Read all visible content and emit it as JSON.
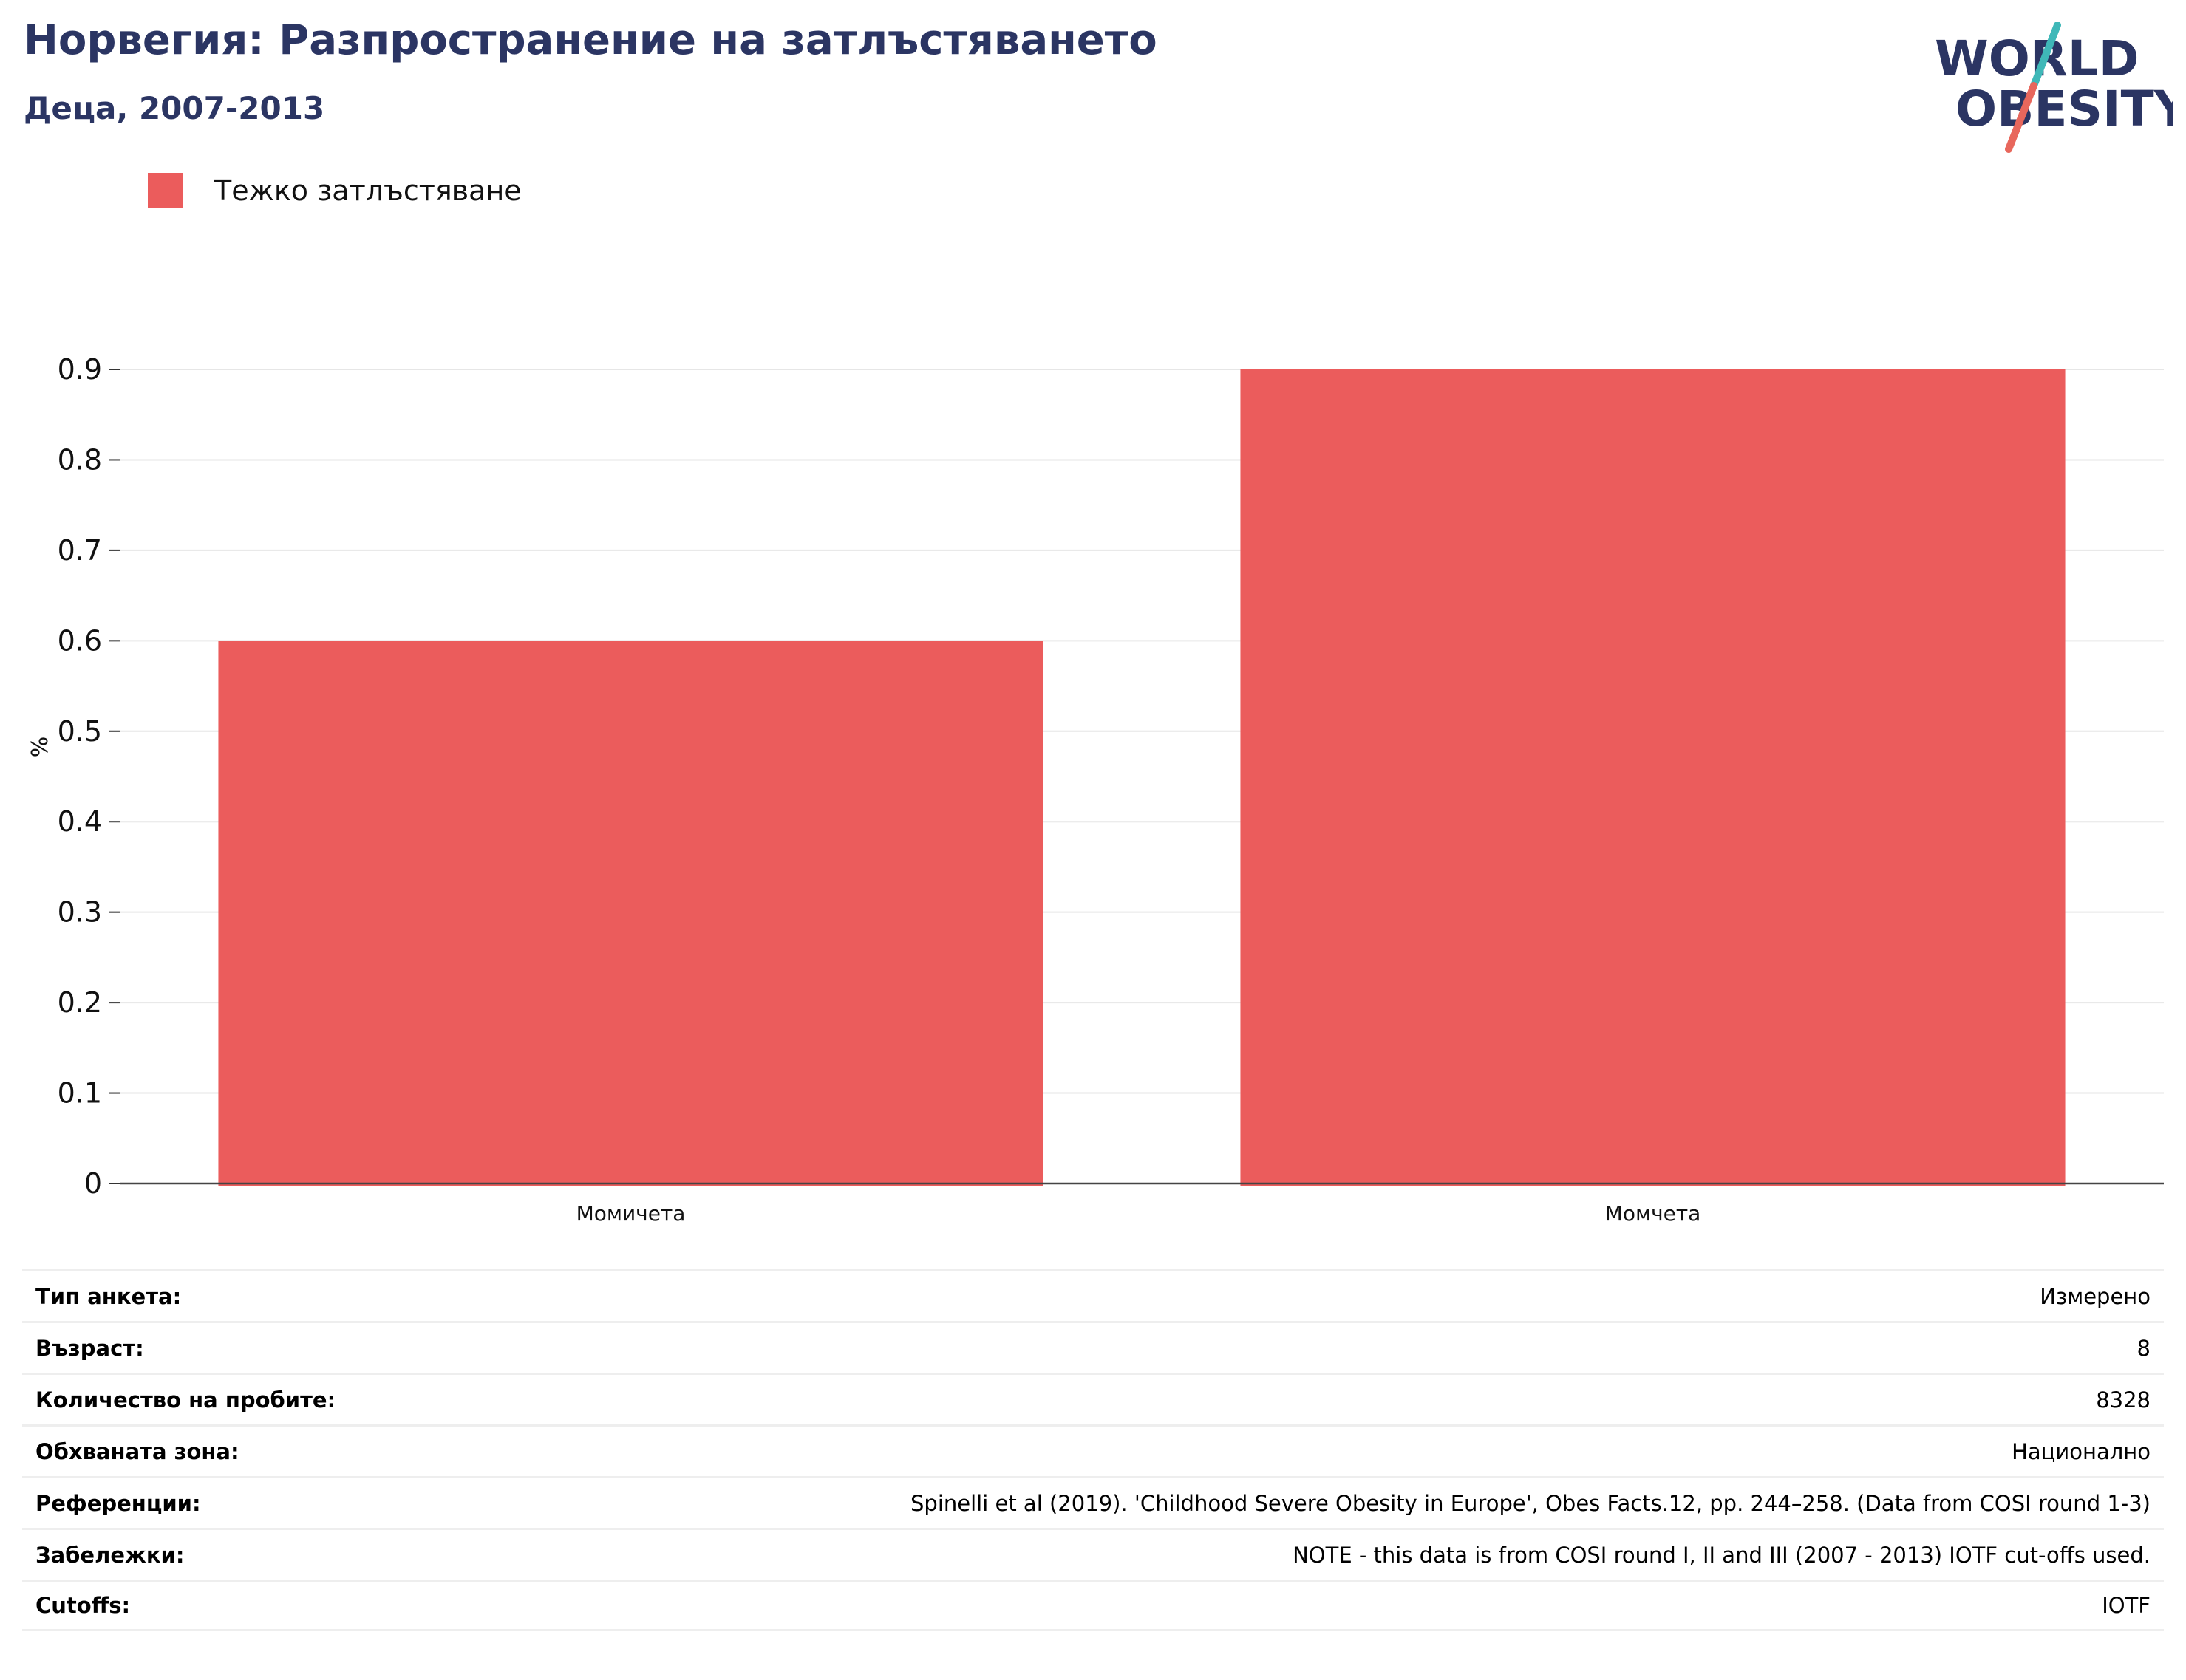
{
  "header": {
    "title": "Норвегия: Разпространение на затлъстяването",
    "subtitle": "Деца, 2007-2013"
  },
  "logo": {
    "line1": "WORLD",
    "line2": "OBESITY",
    "text_color": "#2b3563",
    "slash_top_color": "#3fb8b8",
    "slash_bottom_color": "#e8675c"
  },
  "chart_data": {
    "type": "bar",
    "categories": [
      "Момичета",
      "Момчета"
    ],
    "series": [
      {
        "name": "Тежко затлъстяване",
        "values": [
          0.6,
          0.9
        ],
        "color": "#eb5c5c"
      }
    ],
    "title": "Норвегия: Разпространение на затлъстяването",
    "subtitle": "Деца, 2007-2013",
    "xlabel": "",
    "ylabel": "%",
    "ylim": [
      0,
      0.9
    ],
    "yticks": [
      "0",
      "0.1",
      "0.2",
      "0.3",
      "0.4",
      "0.5",
      "0.6",
      "0.7",
      "0.8",
      "0.9"
    ],
    "grid": true,
    "legend_position": "top-left"
  },
  "meta": [
    {
      "label": "Тип анкета:",
      "value": "Измерено"
    },
    {
      "label": "Възраст:",
      "value": "8"
    },
    {
      "label": "Количество на пробите:",
      "value": "8328"
    },
    {
      "label": "Обхваната зона:",
      "value": "Национално"
    },
    {
      "label": "Референции:",
      "value": "Spinelli et al (2019). 'Childhood Severe Obesity in Europe', Obes Facts.12, pp. 244–258. (Data from COSI round 1-3)"
    },
    {
      "label": "Забележки:",
      "value": "NOTE - this data is from COSI round I, II and III (2007 - 2013) IOTF cut-offs used."
    },
    {
      "label": "Cutoffs:",
      "value": "IOTF"
    }
  ]
}
